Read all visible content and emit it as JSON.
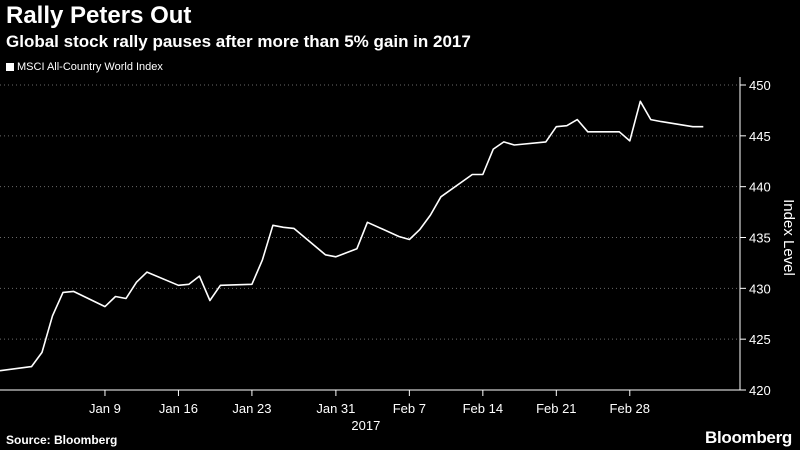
{
  "header": {
    "title": "Rally Peters Out",
    "subtitle": "Global stock rally pauses after more than 5% gain in 2017"
  },
  "legend": {
    "label": "MSCI All-Country World Index"
  },
  "footer": {
    "source": "Source: Bloomberg",
    "brand": "Bloomberg"
  },
  "colors": {
    "background": "#000000",
    "line": "#ffffff",
    "grid": "#6a6a6a"
  },
  "chart_data": {
    "type": "line",
    "title": "Rally Peters Out",
    "subtitle": "Global stock rally pauses after more than 5% gain in 2017",
    "ylabel": "Index Level",
    "ylim": [
      420,
      450
    ],
    "y_ticks": [
      420,
      425,
      430,
      435,
      440,
      445,
      450
    ],
    "y_axis_side": "right",
    "x_tick_labels": [
      "Jan 9",
      "Jan 16",
      "Jan 23",
      "Jan 31",
      "Feb 7",
      "Feb 14",
      "Feb 21",
      "Feb 28"
    ],
    "x_tick_dates": [
      "2017-01-09",
      "2017-01-16",
      "2017-01-23",
      "2017-01-31",
      "2017-02-07",
      "2017-02-14",
      "2017-02-21",
      "2017-02-28"
    ],
    "x_year_label": "2017",
    "grid": "horizontal dotted",
    "legend_position": "top-left",
    "series": [
      {
        "name": "MSCI All-Country World Index",
        "x": [
          "2016-12-30",
          "2017-01-02",
          "2017-01-03",
          "2017-01-04",
          "2017-01-05",
          "2017-01-06",
          "2017-01-09",
          "2017-01-10",
          "2017-01-11",
          "2017-01-12",
          "2017-01-13",
          "2017-01-16",
          "2017-01-17",
          "2017-01-18",
          "2017-01-19",
          "2017-01-20",
          "2017-01-23",
          "2017-01-24",
          "2017-01-25",
          "2017-01-26",
          "2017-01-27",
          "2017-01-30",
          "2017-01-31",
          "2017-02-01",
          "2017-02-02",
          "2017-02-03",
          "2017-02-06",
          "2017-02-07",
          "2017-02-08",
          "2017-02-09",
          "2017-02-10",
          "2017-02-13",
          "2017-02-14",
          "2017-02-15",
          "2017-02-16",
          "2017-02-17",
          "2017-02-20",
          "2017-02-21",
          "2017-02-22",
          "2017-02-23",
          "2017-02-24",
          "2017-02-27",
          "2017-02-28",
          "2017-03-01",
          "2017-03-02",
          "2017-03-03",
          "2017-03-06",
          "2017-03-07"
        ],
        "values": [
          421.9,
          422.3,
          423.7,
          427.3,
          429.6,
          429.7,
          428.2,
          429.2,
          429.0,
          430.6,
          431.6,
          430.3,
          430.4,
          431.2,
          428.8,
          430.3,
          430.4,
          432.8,
          436.2,
          436.0,
          435.9,
          433.3,
          433.1,
          433.5,
          433.9,
          436.5,
          435.1,
          434.8,
          435.8,
          437.2,
          439.0,
          441.2,
          441.2,
          443.7,
          444.4,
          444.1,
          444.4,
          445.9,
          446.0,
          446.6,
          445.4,
          445.4,
          444.5,
          448.4,
          446.6,
          446.4,
          445.9,
          445.9
        ]
      }
    ]
  }
}
